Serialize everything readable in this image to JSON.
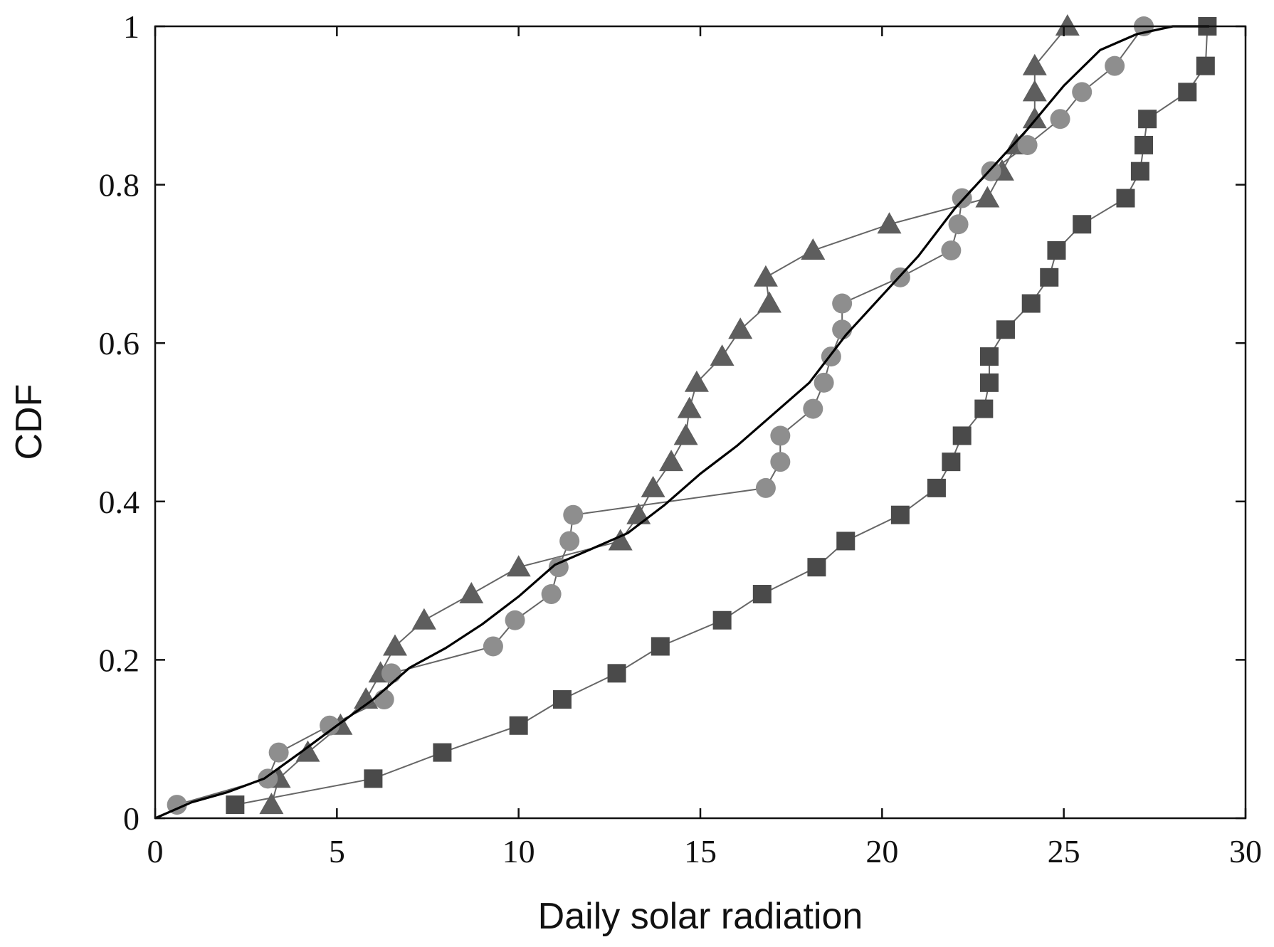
{
  "chart_data": {
    "type": "line",
    "title": "",
    "xlabel": "Daily solar radiation",
    "ylabel": "CDF",
    "xlim": [
      0,
      30
    ],
    "ylim": [
      0,
      1
    ],
    "x_ticks": [
      0,
      5,
      10,
      15,
      20,
      25,
      30
    ],
    "x_tick_labels": [
      "0",
      "5",
      "10",
      "15",
      "20",
      "25",
      "30"
    ],
    "y_ticks": [
      0,
      0.2,
      0.4,
      0.6,
      0.8,
      1
    ],
    "y_tick_labels": [
      "0",
      "0.2",
      "0.4",
      "0.6",
      "0.8",
      "1"
    ],
    "grid": false,
    "legend": "none",
    "colors": {
      "squares": "#4a4a4a",
      "triangles": "#5e5e5e",
      "circles": "#8e8e8e",
      "curve": "#000000",
      "marker_line": "#666666",
      "axis": "#111111"
    },
    "series": [
      {
        "name": "squares",
        "marker": "square",
        "points": [
          [
            2.2,
            0.017
          ],
          [
            6.0,
            0.05
          ],
          [
            7.9,
            0.083
          ],
          [
            10.0,
            0.117
          ],
          [
            11.2,
            0.15
          ],
          [
            12.7,
            0.183
          ],
          [
            13.9,
            0.217
          ],
          [
            15.6,
            0.25
          ],
          [
            16.7,
            0.283
          ],
          [
            18.2,
            0.317
          ],
          [
            19.0,
            0.35
          ],
          [
            20.5,
            0.383
          ],
          [
            21.5,
            0.417
          ],
          [
            21.9,
            0.45
          ],
          [
            22.2,
            0.483
          ],
          [
            22.8,
            0.517
          ],
          [
            22.95,
            0.55
          ],
          [
            22.95,
            0.583
          ],
          [
            23.4,
            0.617
          ],
          [
            24.1,
            0.65
          ],
          [
            24.6,
            0.683
          ],
          [
            24.8,
            0.717
          ],
          [
            25.5,
            0.75
          ],
          [
            26.7,
            0.783
          ],
          [
            27.1,
            0.817
          ],
          [
            27.2,
            0.85
          ],
          [
            27.3,
            0.883
          ],
          [
            28.4,
            0.917
          ],
          [
            28.9,
            0.95
          ],
          [
            28.95,
            1.0
          ]
        ]
      },
      {
        "name": "triangles",
        "marker": "triangle",
        "points": [
          [
            3.2,
            0.017
          ],
          [
            3.4,
            0.05
          ],
          [
            4.2,
            0.083
          ],
          [
            5.1,
            0.117
          ],
          [
            5.8,
            0.15
          ],
          [
            6.2,
            0.183
          ],
          [
            6.6,
            0.217
          ],
          [
            7.4,
            0.25
          ],
          [
            8.7,
            0.283
          ],
          [
            10.0,
            0.317
          ],
          [
            12.8,
            0.35
          ],
          [
            13.3,
            0.383
          ],
          [
            13.7,
            0.417
          ],
          [
            14.2,
            0.45
          ],
          [
            14.6,
            0.483
          ],
          [
            14.7,
            0.517
          ],
          [
            14.9,
            0.55
          ],
          [
            15.6,
            0.583
          ],
          [
            16.1,
            0.617
          ],
          [
            16.9,
            0.65
          ],
          [
            16.8,
            0.683
          ],
          [
            18.1,
            0.717
          ],
          [
            20.2,
            0.75
          ],
          [
            22.9,
            0.783
          ],
          [
            23.3,
            0.817
          ],
          [
            23.7,
            0.85
          ],
          [
            24.2,
            0.883
          ],
          [
            24.2,
            0.917
          ],
          [
            24.2,
            0.95
          ],
          [
            25.1,
            1.0
          ]
        ]
      },
      {
        "name": "circles",
        "marker": "circle",
        "points": [
          [
            0.6,
            0.017
          ],
          [
            3.1,
            0.05
          ],
          [
            3.4,
            0.083
          ],
          [
            4.8,
            0.117
          ],
          [
            6.3,
            0.15
          ],
          [
            6.5,
            0.183
          ],
          [
            9.3,
            0.217
          ],
          [
            9.9,
            0.25
          ],
          [
            10.9,
            0.283
          ],
          [
            11.1,
            0.317
          ],
          [
            11.4,
            0.35
          ],
          [
            11.5,
            0.383
          ],
          [
            16.8,
            0.417
          ],
          [
            17.2,
            0.45
          ],
          [
            17.2,
            0.483
          ],
          [
            18.1,
            0.517
          ],
          [
            18.4,
            0.55
          ],
          [
            18.6,
            0.583
          ],
          [
            18.9,
            0.617
          ],
          [
            18.9,
            0.65
          ],
          [
            20.5,
            0.683
          ],
          [
            21.9,
            0.717
          ],
          [
            22.1,
            0.75
          ],
          [
            22.2,
            0.783
          ],
          [
            23.0,
            0.817
          ],
          [
            24.0,
            0.85
          ],
          [
            24.9,
            0.883
          ],
          [
            25.5,
            0.917
          ],
          [
            26.4,
            0.95
          ],
          [
            27.2,
            1.0
          ]
        ]
      },
      {
        "name": "curve",
        "marker": "none",
        "points": [
          [
            0.0,
            0.0
          ],
          [
            1.0,
            0.02
          ],
          [
            2.0,
            0.033
          ],
          [
            3.0,
            0.05
          ],
          [
            4.0,
            0.083
          ],
          [
            5.0,
            0.117
          ],
          [
            6.0,
            0.15
          ],
          [
            6.5,
            0.17
          ],
          [
            7.0,
            0.19
          ],
          [
            8.0,
            0.215
          ],
          [
            9.0,
            0.245
          ],
          [
            10.0,
            0.28
          ],
          [
            11.0,
            0.32
          ],
          [
            12.0,
            0.34
          ],
          [
            13.0,
            0.36
          ],
          [
            14.0,
            0.395
          ],
          [
            15.0,
            0.435
          ],
          [
            16.0,
            0.47
          ],
          [
            17.0,
            0.51
          ],
          [
            18.0,
            0.55
          ],
          [
            19.0,
            0.61
          ],
          [
            20.0,
            0.66
          ],
          [
            21.0,
            0.71
          ],
          [
            22.0,
            0.77
          ],
          [
            23.0,
            0.82
          ],
          [
            24.0,
            0.87
          ],
          [
            25.0,
            0.925
          ],
          [
            26.0,
            0.97
          ],
          [
            27.0,
            0.99
          ],
          [
            28.0,
            1.0
          ],
          [
            29.0,
            1.0
          ]
        ]
      }
    ]
  }
}
